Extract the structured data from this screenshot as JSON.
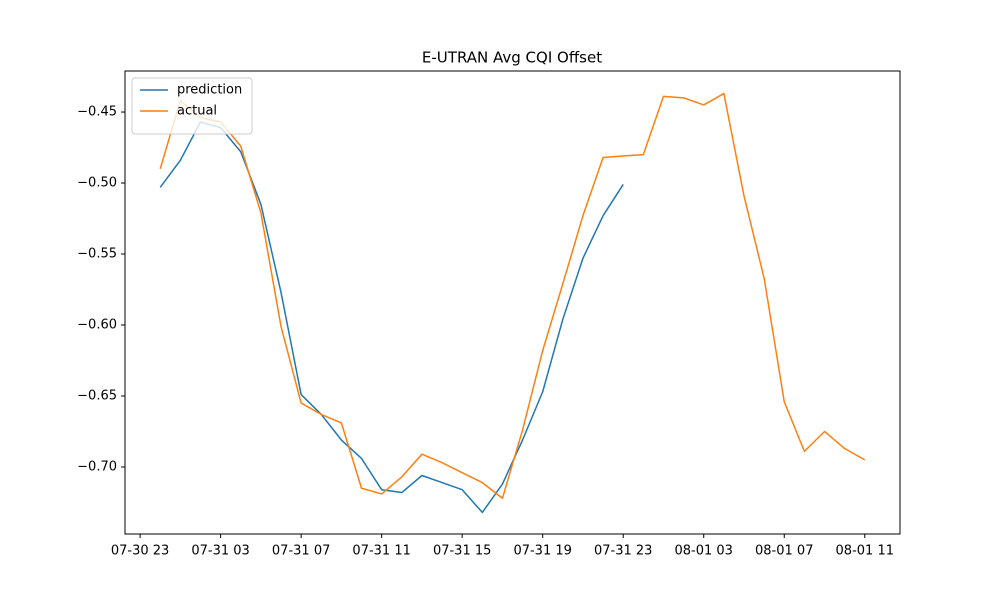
{
  "chart_data": {
    "type": "line",
    "title": "E-UTRAN Avg CQI Offset",
    "x": [
      "07-31 00",
      "07-31 01",
      "07-31 02",
      "07-31 03",
      "07-31 04",
      "07-31 05",
      "07-31 06",
      "07-31 07",
      "07-31 08",
      "07-31 09",
      "07-31 10",
      "07-31 11",
      "07-31 12",
      "07-31 13",
      "07-31 14",
      "07-31 15",
      "07-31 16",
      "07-31 17",
      "07-31 18",
      "07-31 19",
      "07-31 20",
      "07-31 21",
      "07-31 22",
      "07-31 23",
      "08-01 00",
      "08-01 01",
      "08-01 02",
      "08-01 03",
      "08-01 04",
      "08-01 05",
      "08-01 06",
      "08-01 07",
      "08-01 08",
      "08-01 09",
      "08-01 10",
      "08-01 11"
    ],
    "series": [
      {
        "name": "prediction",
        "color": "#1f77b4",
        "values": [
          -0.503,
          -0.484,
          -0.457,
          -0.461,
          -0.478,
          -0.515,
          -0.577,
          -0.649,
          -0.663,
          -0.681,
          -0.694,
          -0.716,
          -0.718,
          -0.706,
          -0.711,
          -0.716,
          -0.732,
          -0.712,
          -0.681,
          -0.647,
          -0.596,
          -0.553,
          -0.523,
          -0.501,
          null,
          null,
          null,
          null,
          null,
          null,
          null,
          null,
          null,
          null,
          null,
          null
        ]
      },
      {
        "name": "actual",
        "color": "#ff7f0e",
        "values": [
          -0.49,
          -0.442,
          -0.454,
          -0.457,
          -0.474,
          -0.521,
          -0.601,
          -0.655,
          -0.663,
          -0.669,
          -0.715,
          -0.719,
          -0.707,
          -0.691,
          -0.697,
          -0.704,
          -0.711,
          -0.722,
          -0.674,
          -0.618,
          -0.571,
          -0.523,
          -0.482,
          -0.481,
          -0.48,
          -0.439,
          -0.44,
          -0.445,
          -0.437,
          -0.509,
          -0.567,
          -0.654,
          -0.689,
          -0.675,
          -0.687,
          -0.695
        ]
      }
    ],
    "xlim": [
      "07-30 22:15",
      "08-01 12:45"
    ],
    "xticks": [
      "07-30 23",
      "07-31 03",
      "07-31 07",
      "07-31 11",
      "07-31 15",
      "07-31 19",
      "07-31 23",
      "08-01 03",
      "08-01 07",
      "08-01 11"
    ],
    "ylim": [
      -0.7472,
      -0.4211
    ],
    "yticks": [
      {
        "value": -0.7,
        "label": "−0.70"
      },
      {
        "value": -0.65,
        "label": "−0.65"
      },
      {
        "value": -0.6,
        "label": "−0.60"
      },
      {
        "value": -0.55,
        "label": "−0.55"
      },
      {
        "value": -0.5,
        "label": "−0.50"
      },
      {
        "value": -0.45,
        "label": "−0.45"
      }
    ],
    "grid": false,
    "legend": "upper left"
  }
}
